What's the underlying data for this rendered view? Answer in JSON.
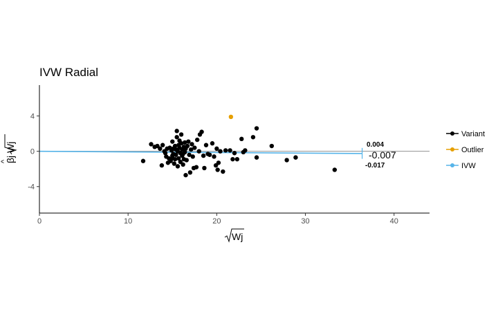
{
  "chart_data": {
    "type": "scatter",
    "title": "IVW Radial",
    "xlabel": "Wj",
    "ylabel": "βj Wj",
    "xlim": [
      0,
      44
    ],
    "ylim": [
      -7,
      7.5
    ],
    "x_ticks": [
      0,
      10,
      20,
      30,
      40
    ],
    "y_ticks": [
      -4,
      0,
      4
    ],
    "grid": false,
    "legend_position": "right",
    "legend": [
      {
        "label": "Variant",
        "color": "#000000"
      },
      {
        "label": "Outlier",
        "color": "#E69F00"
      },
      {
        "label": "IVW",
        "color": "#56B4E9"
      }
    ],
    "ivw": {
      "estimate_label": "-0.007",
      "upper_label": "0.004",
      "lower_label": "-0.017",
      "estimate": -0.007,
      "upper": 0.004,
      "lower": -0.017,
      "line_x_end": 36.4,
      "arc_x": 36.4,
      "color": "#56B4E9"
    },
    "series": [
      {
        "name": "Variant",
        "color": "#000000",
        "points": [
          [
            11.7,
            -1.1
          ],
          [
            12.6,
            0.8
          ],
          [
            13.0,
            0.5
          ],
          [
            13.3,
            0.6
          ],
          [
            13.6,
            0.3
          ],
          [
            13.8,
            -1.6
          ],
          [
            13.9,
            0.7
          ],
          [
            14.1,
            0.0
          ],
          [
            14.2,
            -0.2
          ],
          [
            14.3,
            -0.6
          ],
          [
            14.4,
            0.3
          ],
          [
            14.5,
            -1.3
          ],
          [
            14.6,
            -0.8
          ],
          [
            14.7,
            0.4
          ],
          [
            14.8,
            -1.1
          ],
          [
            14.9,
            0.1
          ],
          [
            15.0,
            -0.5
          ],
          [
            15.0,
            1.1
          ],
          [
            15.1,
            0.3
          ],
          [
            15.1,
            -0.3
          ],
          [
            15.2,
            -1.4
          ],
          [
            15.3,
            0.6
          ],
          [
            15.3,
            -0.9
          ],
          [
            15.4,
            0.2
          ],
          [
            15.4,
            -0.4
          ],
          [
            15.5,
            1.6
          ],
          [
            15.5,
            2.3
          ],
          [
            15.6,
            -1.7
          ],
          [
            15.6,
            0.0
          ],
          [
            15.7,
            0.7
          ],
          [
            15.7,
            -0.8
          ],
          [
            15.8,
            1.2
          ],
          [
            15.8,
            0.4
          ],
          [
            15.9,
            -0.2
          ],
          [
            15.9,
            -1.2
          ],
          [
            16.0,
            0.9
          ],
          [
            16.0,
            1.9
          ],
          [
            16.1,
            -0.5
          ],
          [
            16.1,
            0.2
          ],
          [
            16.2,
            -1.5
          ],
          [
            16.3,
            0.5
          ],
          [
            16.3,
            -0.9
          ],
          [
            16.4,
            1.0
          ],
          [
            16.4,
            -0.1
          ],
          [
            16.5,
            0.3
          ],
          [
            16.5,
            -2.7
          ],
          [
            16.6,
            -1.0
          ],
          [
            16.7,
            0.6
          ],
          [
            16.8,
            1.1
          ],
          [
            16.9,
            -0.4
          ],
          [
            17.0,
            -2.4
          ],
          [
            17.1,
            0.2
          ],
          [
            17.2,
            0.8
          ],
          [
            17.3,
            -0.6
          ],
          [
            17.4,
            -1.9
          ],
          [
            17.5,
            0.4
          ],
          [
            17.7,
            -1.8
          ],
          [
            17.8,
            1.3
          ],
          [
            18.0,
            0.0
          ],
          [
            18.1,
            1.9
          ],
          [
            18.3,
            2.2
          ],
          [
            18.5,
            -0.5
          ],
          [
            18.6,
            -1.9
          ],
          [
            18.8,
            0.7
          ],
          [
            19.0,
            -0.3
          ],
          [
            19.2,
            -0.4
          ],
          [
            19.5,
            0.9
          ],
          [
            19.7,
            -0.6
          ],
          [
            19.9,
            -1.6
          ],
          [
            20.0,
            0.3
          ],
          [
            20.1,
            -2.1
          ],
          [
            20.2,
            -1.3
          ],
          [
            20.4,
            0.0
          ],
          [
            20.7,
            -2.3
          ],
          [
            21.0,
            0.1
          ],
          [
            21.5,
            0.1
          ],
          [
            21.8,
            -0.9
          ],
          [
            22.0,
            -0.2
          ],
          [
            22.3,
            -0.9
          ],
          [
            22.8,
            1.4
          ],
          [
            23.0,
            -0.1
          ],
          [
            23.2,
            0.1
          ],
          [
            24.1,
            1.6
          ],
          [
            24.5,
            2.6
          ],
          [
            24.5,
            -0.7
          ],
          [
            26.2,
            0.6
          ],
          [
            27.9,
            -1.0
          ],
          [
            28.9,
            -0.7
          ],
          [
            33.3,
            -2.1
          ],
          [
            15.0,
            -0.8
          ],
          [
            16.2,
            -0.3
          ]
        ]
      },
      {
        "name": "Outlier",
        "color": "#E69F00",
        "points": [
          [
            21.6,
            3.9
          ]
        ]
      }
    ]
  }
}
